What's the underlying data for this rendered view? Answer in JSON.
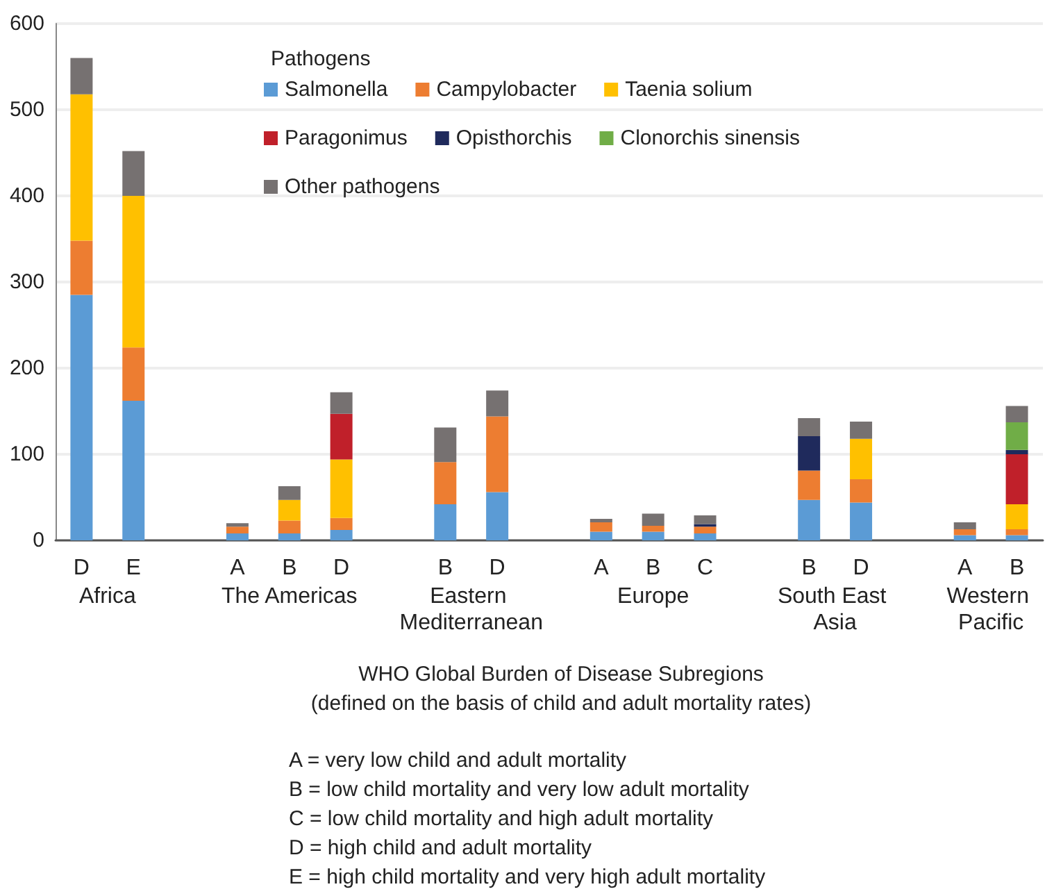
{
  "chart_data": {
    "type": "bar",
    "stacked": true,
    "categories": [
      "D",
      "E",
      null,
      "A",
      "B",
      "D",
      null,
      "B",
      "D",
      null,
      "A",
      "B",
      "C",
      null,
      "B",
      "D",
      null,
      "A",
      "B"
    ],
    "series": [
      {
        "name": "Salmonella",
        "color": "#5b9bd5",
        "values": [
          285,
          162,
          null,
          8,
          8,
          12,
          null,
          42,
          56,
          null,
          10,
          10,
          8,
          null,
          47,
          44,
          null,
          6,
          6
        ]
      },
      {
        "name": "Campylobacter",
        "color": "#ed7d31",
        "values": [
          63,
          62,
          null,
          8,
          15,
          14,
          null,
          49,
          88,
          null,
          11,
          7,
          8,
          null,
          34,
          27,
          null,
          7,
          7
        ]
      },
      {
        "name": "Taenia solium",
        "color": "#ffc000",
        "values": [
          170,
          176,
          null,
          0,
          24,
          68,
          null,
          0,
          0,
          null,
          0,
          0,
          0,
          null,
          0,
          47,
          null,
          0,
          29
        ]
      },
      {
        "name": "Paragonimus",
        "color": "#c0202a",
        "values": [
          0,
          0,
          null,
          0,
          0,
          53,
          null,
          0,
          0,
          null,
          0,
          0,
          0,
          null,
          0,
          0,
          null,
          0,
          58
        ]
      },
      {
        "name": "Opisthorchis",
        "color": "#1f2a5c",
        "values": [
          0,
          0,
          null,
          0,
          0,
          0,
          null,
          0,
          0,
          null,
          0,
          0,
          3,
          null,
          40,
          0,
          null,
          0,
          5
        ]
      },
      {
        "name": "Clonorchis sinensis",
        "color": "#70ad47",
        "values": [
          0,
          0,
          null,
          0,
          0,
          0,
          null,
          0,
          0,
          null,
          0,
          0,
          0,
          null,
          0,
          0,
          null,
          0,
          32
        ]
      },
      {
        "name": "Other pathogens",
        "color": "#767171",
        "values": [
          42,
          52,
          null,
          4,
          16,
          25,
          null,
          40,
          30,
          null,
          4,
          14,
          10,
          null,
          21,
          20,
          null,
          8,
          19
        ]
      }
    ],
    "ylim": [
      0,
      600
    ],
    "yticks": [
      0,
      100,
      200,
      300,
      400,
      500,
      600
    ],
    "grid": "y",
    "legend": "top",
    "legend_title": "Pathogens",
    "title": "WHO Global Burden of Disease Subregions",
    "subtitle": "(defined on the basis of child and adult mortality rates)",
    "annotations": [
      "Africa",
      "The Americas",
      "Eastern Mediterranean",
      "Europe",
      "South East Asia",
      "Western Pacific",
      "A = very low child and adult mortality",
      "B = low child mortality and very low adult mortality",
      "C = low child mortality and high adult mortality",
      "D = high child and adult mortality",
      "E = high child mortality and very high adult mortality"
    ]
  }
}
